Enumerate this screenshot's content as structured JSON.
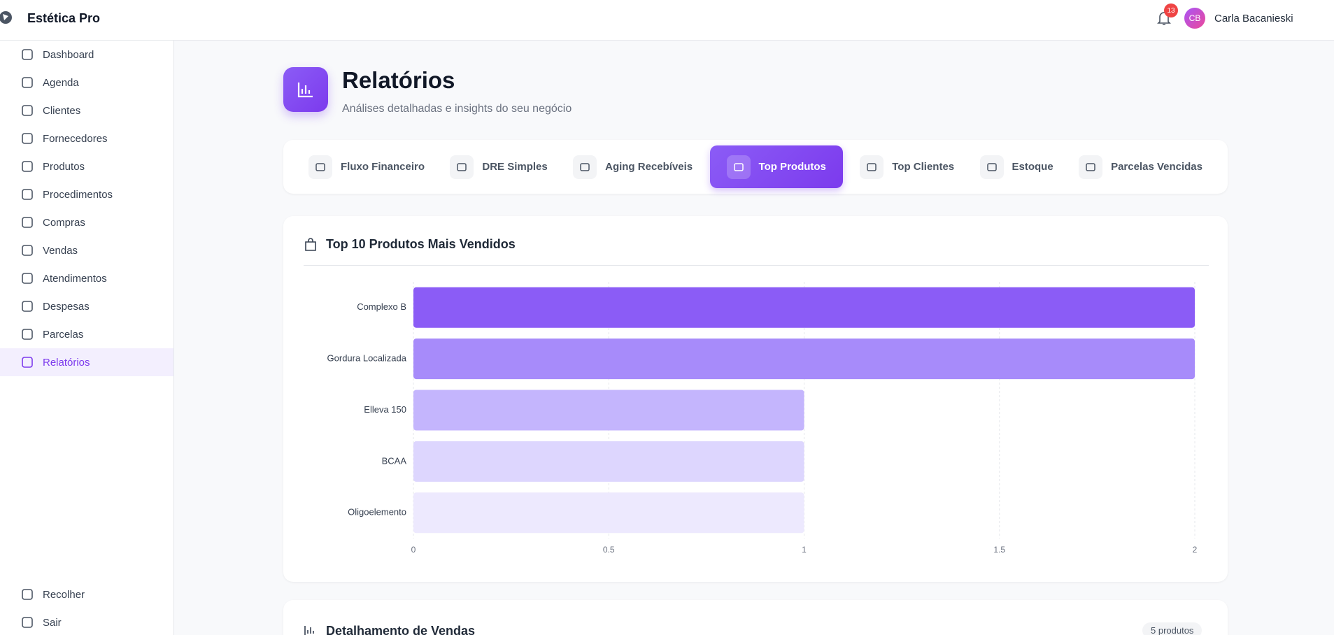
{
  "header": {
    "brand": "Estética Pro",
    "notifications": "13",
    "initials": "CB",
    "user": "Carla Bacanieski"
  },
  "sidebar": {
    "items": [
      "Dashboard",
      "Agenda",
      "Clientes",
      "Fornecedores",
      "Produtos",
      "Procedimentos",
      "Compras",
      "Vendas",
      "Atendimentos",
      "Despesas",
      "Parcelas",
      "Relatórios"
    ],
    "footer": [
      "Recolher",
      "Sair"
    ]
  },
  "page": {
    "title": "Relatórios",
    "subtitle": "Análises detalhadas e insights do seu negócio"
  },
  "tabs": [
    "Fluxo Financeiro",
    "DRE Simples",
    "Aging Recebíveis",
    "Top Produtos",
    "Top Clientes",
    "Estoque",
    "Parcelas Vencidas"
  ],
  "chart_data": {
    "type": "bar",
    "orientation": "horizontal",
    "title": "Top 10 Produtos Mais Vendidos",
    "categories": [
      "Complexo B",
      "Gordura Localizada",
      "Elleva 150",
      "BCAA",
      "Oligoelemento"
    ],
    "values": [
      2,
      2,
      1,
      1,
      1
    ],
    "colors": [
      "#8b5cf6",
      "#a78bfa",
      "#c4b5fd",
      "#ddd6fe",
      "#ede9fe"
    ],
    "xlim": [
      0,
      2
    ],
    "xticks": [
      0,
      0.5,
      1,
      1.5,
      2
    ],
    "grid": true
  },
  "details": {
    "title": "Detalhamento de Vendas",
    "badge": "5 produtos"
  }
}
